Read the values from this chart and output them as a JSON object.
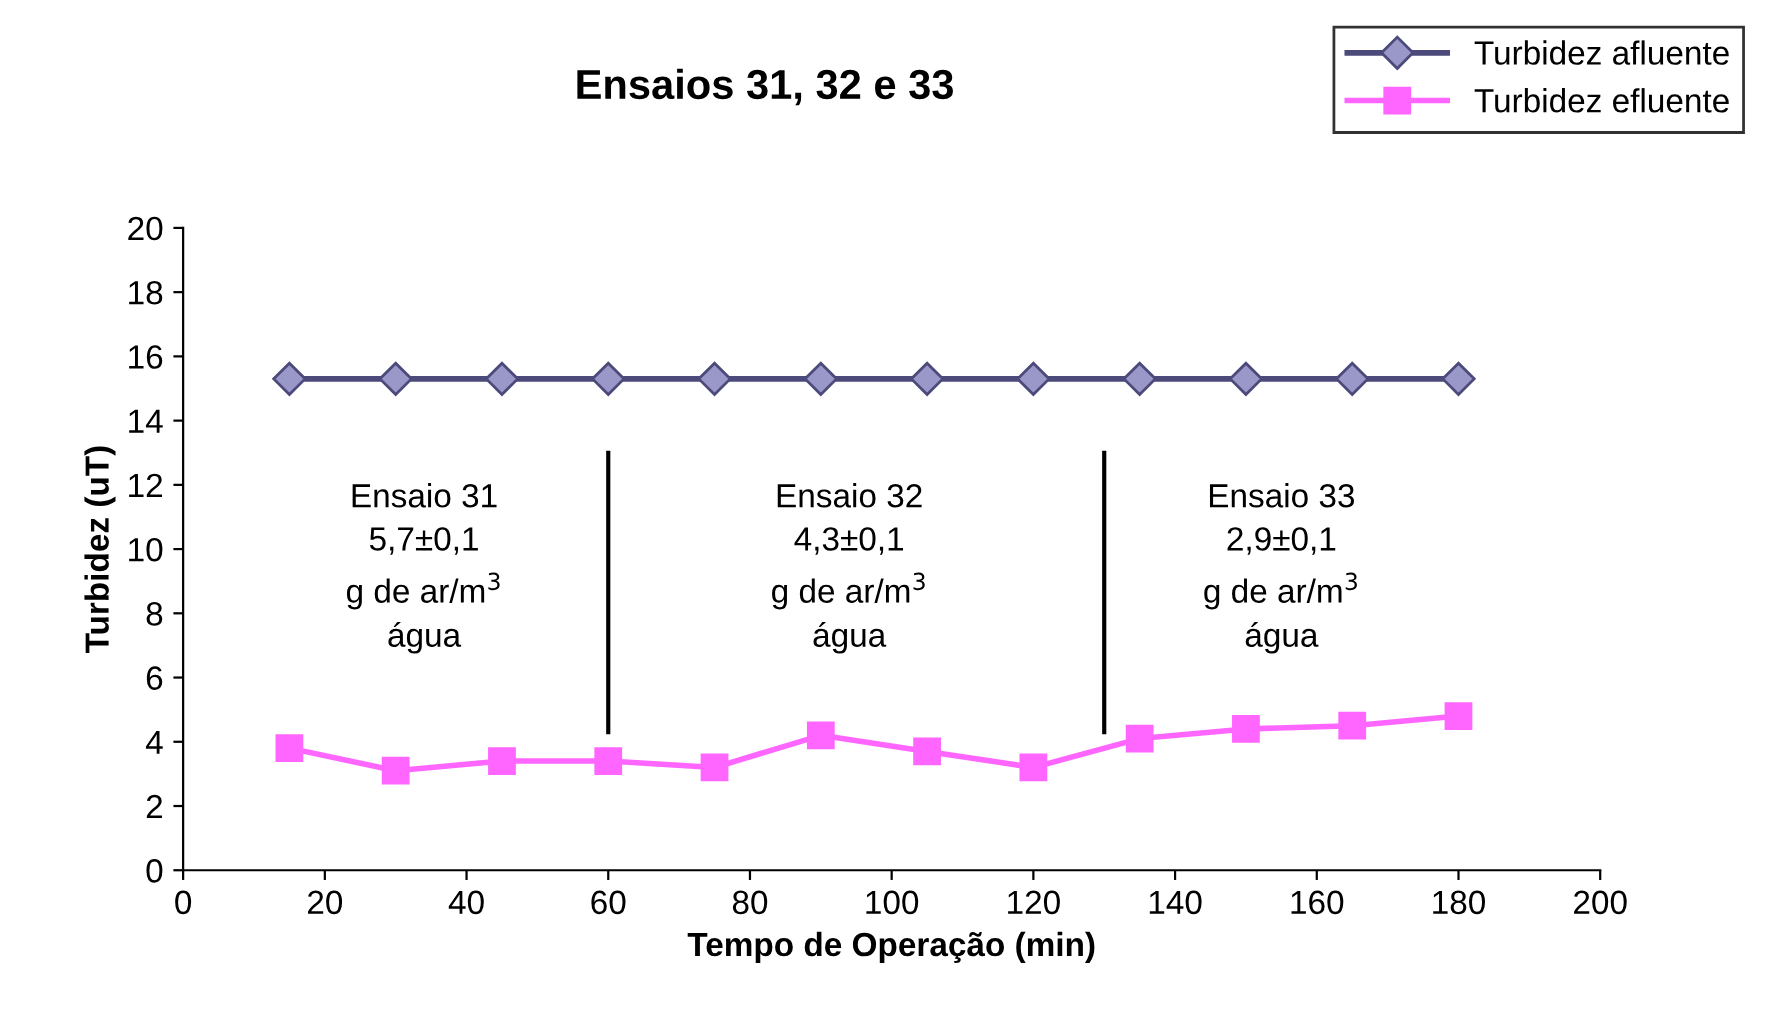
{
  "chart_data": {
    "type": "line",
    "title": "Ensaios 31, 32 e 33",
    "xlabel": "Tempo de Operação (min)",
    "ylabel": "Turbidez (uT)",
    "x": [
      15,
      30,
      45,
      60,
      75,
      90,
      105,
      120,
      135,
      150,
      165,
      180
    ],
    "series": [
      {
        "name": "Turbidez afluente",
        "color": "#4b4a7a",
        "marker": "diamond",
        "values": [
          15.3,
          15.3,
          15.3,
          15.3,
          15.3,
          15.3,
          15.3,
          15.3,
          15.3,
          15.3,
          15.3,
          15.3
        ]
      },
      {
        "name": "Turbidez efluente",
        "color": "#ff66ff",
        "marker": "square",
        "values": [
          3.8,
          3.1,
          3.4,
          3.4,
          3.2,
          4.2,
          3.7,
          3.2,
          4.1,
          4.4,
          4.5,
          4.8
        ]
      }
    ],
    "xlim": [
      0,
      200
    ],
    "xticks": [
      0,
      20,
      40,
      60,
      80,
      100,
      120,
      140,
      160,
      180,
      200
    ],
    "ylim": [
      0,
      20
    ],
    "yticks": [
      0,
      2,
      4,
      6,
      8,
      10,
      12,
      14,
      16,
      18,
      20
    ],
    "ref_lines": [
      {
        "axis": "x",
        "value": 60,
        "color": "#000000"
      },
      {
        "axis": "x",
        "value": 130,
        "color": "#000000"
      }
    ],
    "annotations": [
      "Ensaio 31\n5,7±0,1\ng de ar/m$^{3}$\nágua",
      "Ensaio 32\n4,3±0,1\ng de ar/m$^{3}$\nágua",
      "Ensaio 33\n2,9±0,1\ng de ar/m$^{3}$\nágua"
    ],
    "grid": false,
    "legend": "top right",
    "line_style": "solid"
  }
}
